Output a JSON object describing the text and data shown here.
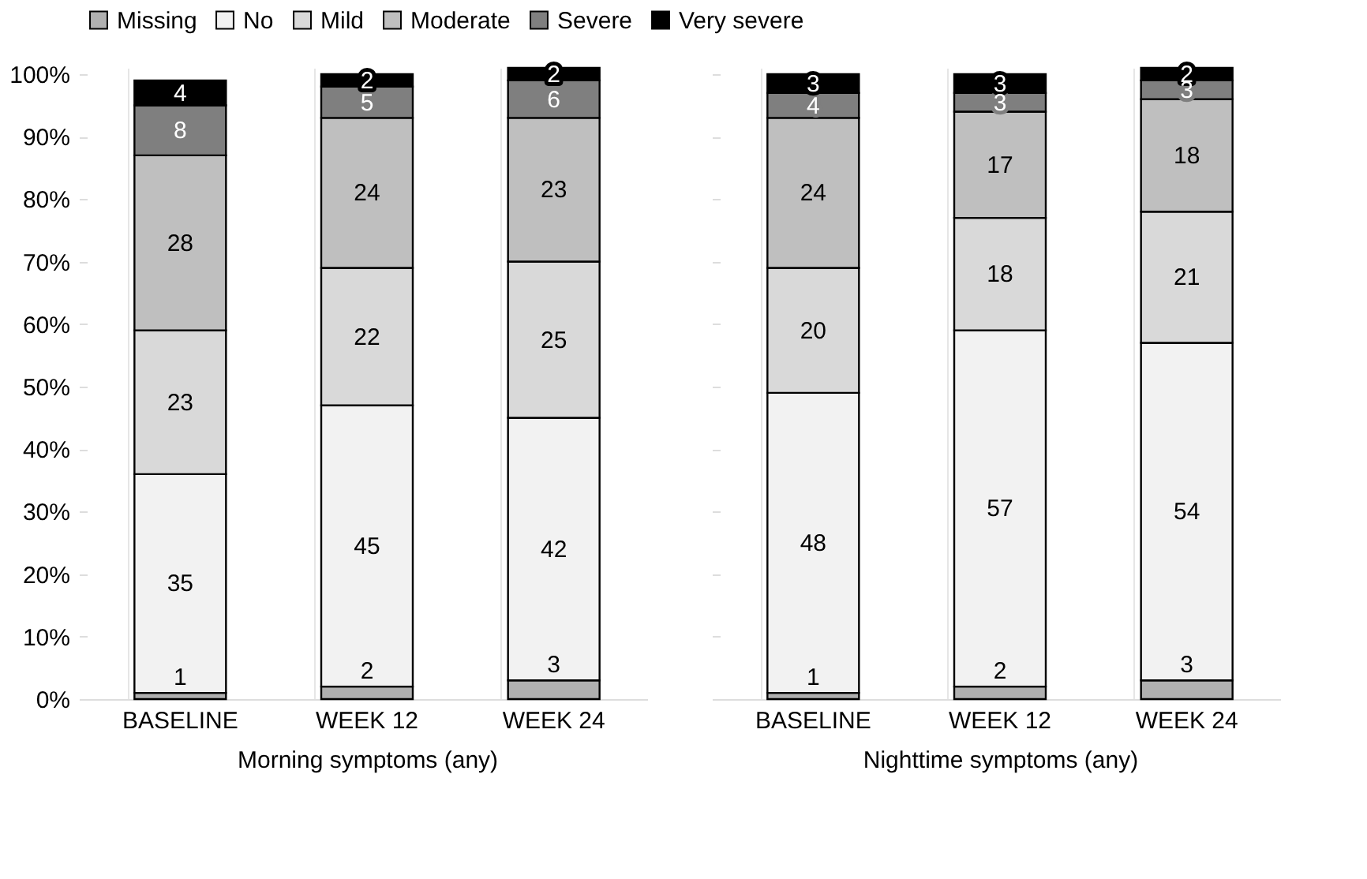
{
  "chart_data": [
    {
      "type": "bar",
      "stacked": true,
      "xlabel": "Morning symptoms (any)",
      "categories": [
        "BASELINE",
        "WEEK 12",
        "WEEK 24"
      ],
      "series": [
        {
          "name": "Missing",
          "color": "#b0b0b0",
          "values": [
            1,
            2,
            3
          ]
        },
        {
          "name": "No",
          "color": "#f2f2f2",
          "values": [
            35,
            45,
            42
          ]
        },
        {
          "name": "Mild",
          "color": "#d9d9d9",
          "values": [
            23,
            22,
            25
          ]
        },
        {
          "name": "Moderate",
          "color": "#bfbfbf",
          "values": [
            28,
            24,
            23
          ]
        },
        {
          "name": "Severe",
          "color": "#7f7f7f",
          "values": [
            8,
            5,
            6
          ]
        },
        {
          "name": "Very severe",
          "color": "#000000",
          "values": [
            4,
            2,
            2
          ]
        }
      ],
      "ylim": [
        0,
        101
      ],
      "yticks": [
        {
          "value": 0,
          "label": "0%"
        },
        {
          "value": 10,
          "label": "10%"
        },
        {
          "value": 20,
          "label": "20%"
        },
        {
          "value": 30,
          "label": "30%"
        },
        {
          "value": 40,
          "label": "40%"
        },
        {
          "value": 50,
          "label": "50%"
        },
        {
          "value": 60,
          "label": "60%"
        },
        {
          "value": 70,
          "label": "70%"
        },
        {
          "value": 80,
          "label": "80%"
        },
        {
          "value": 90,
          "label": "90%"
        },
        {
          "value": 100,
          "label": "100%"
        }
      ],
      "data_labels": true,
      "grid": "x",
      "legend": "top"
    },
    {
      "type": "bar",
      "stacked": true,
      "xlabel": "Nighttime symptoms (any)",
      "categories": [
        "BASELINE",
        "WEEK 12",
        "WEEK 24"
      ],
      "series": [
        {
          "name": "Missing",
          "color": "#b0b0b0",
          "values": [
            1,
            2,
            3
          ]
        },
        {
          "name": "No",
          "color": "#f2f2f2",
          "values": [
            48,
            57,
            54
          ]
        },
        {
          "name": "Mild",
          "color": "#d9d9d9",
          "values": [
            20,
            18,
            21
          ]
        },
        {
          "name": "Moderate",
          "color": "#bfbfbf",
          "values": [
            24,
            17,
            18
          ]
        },
        {
          "name": "Severe",
          "color": "#7f7f7f",
          "values": [
            4,
            3,
            3
          ]
        },
        {
          "name": "Very severe",
          "color": "#000000",
          "values": [
            3,
            3,
            2
          ]
        }
      ],
      "ylim": [
        0,
        101
      ],
      "yticks": [
        {
          "value": 0,
          "label": null
        },
        {
          "value": 10,
          "label": null
        },
        {
          "value": 20,
          "label": null
        },
        {
          "value": 30,
          "label": null
        },
        {
          "value": 40,
          "label": null
        },
        {
          "value": 50,
          "label": null
        },
        {
          "value": 60,
          "label": null
        },
        {
          "value": 70,
          "label": null
        },
        {
          "value": 80,
          "label": null
        },
        {
          "value": 90,
          "label": null
        },
        {
          "value": 100,
          "label": null
        }
      ],
      "tick_labels": "x",
      "data_labels": true,
      "grid": "x",
      "legend": "top"
    }
  ]
}
